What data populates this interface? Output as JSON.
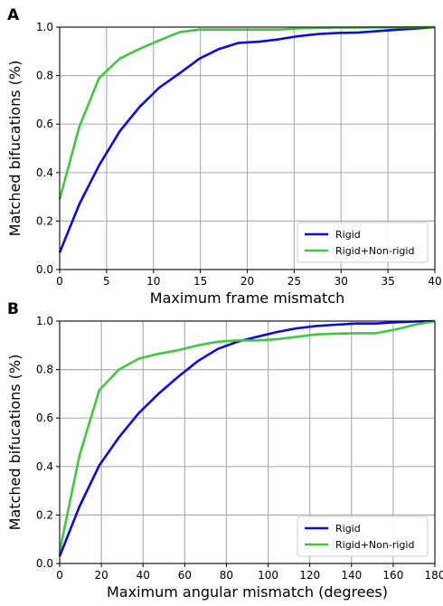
{
  "colors": {
    "rigid": "#0a0ae0",
    "nonrigid": "#3ec83e",
    "grid": "#b0b0b0"
  },
  "chart_data": [
    {
      "panel_letter": "A",
      "type": "line",
      "xlabel": "Maximum frame mismatch",
      "ylabel": "Matched bifucations (%)",
      "xlim": [
        0,
        40
      ],
      "ylim": [
        0,
        1.0
      ],
      "xticks": [
        0,
        5,
        10,
        15,
        20,
        25,
        30,
        35,
        40
      ],
      "yticks": [
        0.0,
        0.2,
        0.4,
        0.6,
        0.8,
        1.0
      ],
      "grid": true,
      "legend_position": "lower-right",
      "series": [
        {
          "name": "Rigid",
          "color": "rigid",
          "x": [
            0,
            2.1,
            4.2,
            6.4,
            8.5,
            10.6,
            12.8,
            14.9,
            17.0,
            19.1,
            21.3,
            23.4,
            25.5,
            27.7,
            29.8,
            31.9,
            34.0,
            36.2,
            38.3,
            40
          ],
          "y": [
            0.07,
            0.27,
            0.43,
            0.57,
            0.67,
            0.75,
            0.81,
            0.87,
            0.91,
            0.935,
            0.94,
            0.95,
            0.963,
            0.972,
            0.976,
            0.978,
            0.984,
            0.99,
            0.995,
            1.0
          ]
        },
        {
          "name": "Rigid+Non-rigid",
          "color": "nonrigid",
          "x": [
            0,
            2.1,
            4.2,
            6.4,
            8.5,
            10.6,
            12.8,
            14.9,
            17.0,
            19.1,
            21.3,
            23.4,
            25.5,
            27.7,
            29.8,
            31.9,
            34.0,
            36.2,
            38.3,
            40
          ],
          "y": [
            0.29,
            0.59,
            0.79,
            0.87,
            0.91,
            0.945,
            0.98,
            0.99,
            0.99,
            0.99,
            0.99,
            0.99,
            0.995,
            0.997,
            0.998,
            0.998,
            0.999,
            0.999,
            1.0,
            1.0
          ]
        }
      ]
    },
    {
      "panel_letter": "B",
      "type": "line",
      "xlabel": "Maximum angular mismatch (degrees)",
      "ylabel": "Matched bifucations (%)",
      "xlim": [
        0,
        180
      ],
      "ylim": [
        0,
        1.0
      ],
      "xticks": [
        0,
        20,
        40,
        60,
        80,
        100,
        120,
        140,
        160,
        180
      ],
      "yticks": [
        0.0,
        0.2,
        0.4,
        0.6,
        0.8,
        1.0
      ],
      "grid": true,
      "legend_position": "lower-right",
      "series": [
        {
          "name": "Rigid",
          "color": "rigid",
          "x": [
            0,
            9.5,
            19,
            28.4,
            37.9,
            47.4,
            56.8,
            66.3,
            75.8,
            85.3,
            94.7,
            104.2,
            113.7,
            123.2,
            132.6,
            142.1,
            151.6,
            161.1,
            170.5,
            180
          ],
          "y": [
            0.03,
            0.235,
            0.405,
            0.52,
            0.62,
            0.7,
            0.77,
            0.835,
            0.885,
            0.915,
            0.935,
            0.955,
            0.97,
            0.98,
            0.985,
            0.99,
            0.99,
            0.995,
            0.998,
            1.0
          ]
        },
        {
          "name": "Rigid+Non-rigid",
          "color": "nonrigid",
          "x": [
            0,
            9.5,
            19,
            28.4,
            37.9,
            47.4,
            56.8,
            66.3,
            75.8,
            85.3,
            94.7,
            104.2,
            113.7,
            123.2,
            132.6,
            142.1,
            151.6,
            161.1,
            170.5,
            180
          ],
          "y": [
            0.05,
            0.445,
            0.715,
            0.8,
            0.845,
            0.865,
            0.88,
            0.9,
            0.915,
            0.92,
            0.92,
            0.925,
            0.935,
            0.945,
            0.948,
            0.95,
            0.95,
            0.965,
            0.985,
            1.0
          ]
        }
      ]
    }
  ]
}
